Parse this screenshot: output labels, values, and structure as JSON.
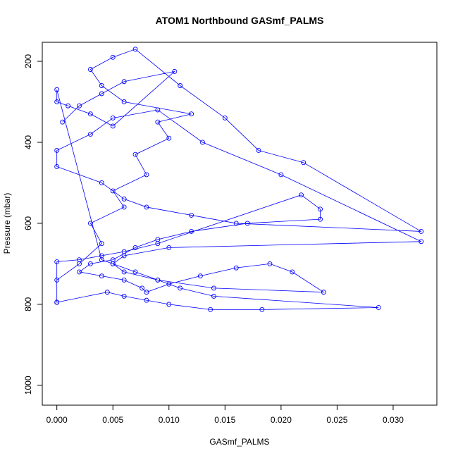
{
  "chart_data": {
    "type": "line",
    "title": "ATOM1 Northbound GASmf_PALMS",
    "x_label": "GASmf_PALMS",
    "y_label": "Pressure (mbar)",
    "xlim": [
      -0.0013,
      0.0339
    ],
    "ylim": [
      153,
      1049
    ],
    "y_inverted": true,
    "xticks": [
      {
        "value": 0,
        "label": "0.000"
      },
      {
        "value": 0.005,
        "label": "0.005"
      },
      {
        "value": 0.01,
        "label": "0.010"
      },
      {
        "value": 0.015,
        "label": "0.015"
      },
      {
        "value": 0.02,
        "label": "0.020"
      },
      {
        "value": 0.025,
        "label": "0.025"
      },
      {
        "value": 0.03,
        "label": "0.030"
      }
    ],
    "yticks": [
      200,
      400,
      600,
      800,
      1000
    ],
    "marker": "circle",
    "series": [
      {
        "color": "#0000ff",
        "x": [
          0.0,
          0.0,
          0.002,
          0.004,
          0.003,
          0.006,
          0.005,
          0.008,
          0.007,
          0.01,
          0.009,
          0.012,
          0.006,
          0.004,
          0.003,
          0.005,
          0.007,
          0.011,
          0.015,
          0.018,
          0.022,
          0.0325,
          0.016,
          0.012,
          0.008,
          0.006,
          0.004,
          0.0,
          0.0,
          0.003,
          0.005,
          0.009,
          0.013,
          0.02,
          0.0325,
          0.01,
          0.006,
          0.005,
          0.007,
          0.009,
          0.011,
          0.014,
          0.0287,
          0.0183,
          0.0137,
          0.01,
          0.008,
          0.006,
          0.0045,
          0.0,
          0.0,
          0.002,
          0.004,
          0.006,
          0.009,
          0.0218,
          0.0235,
          0.0235,
          0.017,
          0.012,
          0.009,
          0.007,
          0.005,
          0.003,
          0.002,
          0.004,
          0.006,
          0.0076,
          0.008,
          0.01,
          0.0128,
          0.016,
          0.019,
          0.021,
          0.0238,
          0.014,
          0.009,
          0.006,
          0.005,
          0.004,
          0.0,
          0.0,
          0.001,
          0.003,
          0.005,
          0.0105,
          0.006,
          0.004,
          0.002,
          0.0005
        ],
        "values": [
          795,
          740,
          700,
          650,
          600,
          560,
          520,
          480,
          430,
          390,
          350,
          330,
          300,
          260,
          220,
          190,
          170,
          260,
          340,
          420,
          450,
          620,
          600,
          580,
          560,
          540,
          500,
          460,
          420,
          380,
          340,
          320,
          400,
          480,
          645,
          660,
          680,
          700,
          720,
          740,
          760,
          780,
          808,
          813,
          813,
          800,
          790,
          780,
          770,
          795,
          695,
          690,
          680,
          670,
          650,
          530,
          565,
          590,
          600,
          620,
          640,
          660,
          690,
          700,
          720,
          730,
          740,
          760,
          770,
          750,
          730,
          710,
          700,
          720,
          770,
          760,
          740,
          720,
          700,
          690,
          270,
          300,
          310,
          330,
          360,
          225,
          250,
          280,
          310,
          350
        ]
      }
    ]
  }
}
